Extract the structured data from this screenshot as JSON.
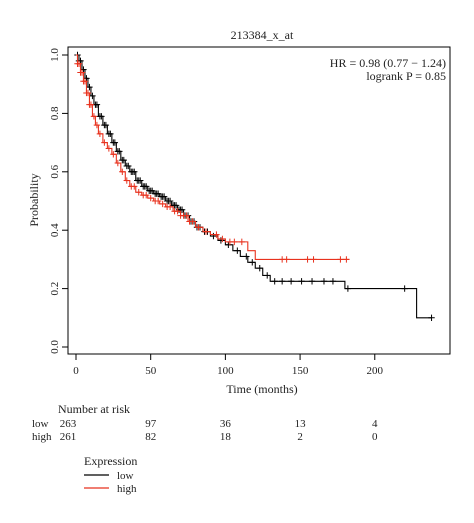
{
  "chart_data": {
    "type": "line",
    "title": "213384_x_at",
    "xlabel": "Time (months)",
    "ylabel": "Probability",
    "xlim": [
      0,
      245
    ],
    "ylim": [
      0,
      1
    ],
    "xticks": [
      0,
      50,
      100,
      150,
      200
    ],
    "yticks": [
      0.0,
      0.2,
      0.4,
      0.6,
      0.8,
      1.0
    ],
    "grid": false,
    "annotations": {
      "hr": "HR = 0.98 (0.77 − 1.24)",
      "logrank": "logrank P = 0.85"
    },
    "series": [
      {
        "name": "low",
        "color": "#000000",
        "x": [
          0,
          2,
          4,
          6,
          8,
          10,
          12,
          15,
          18,
          21,
          24,
          27,
          30,
          33,
          36,
          40,
          44,
          48,
          52,
          56,
          60,
          64,
          68,
          72,
          76,
          80,
          85,
          90,
          95,
          100,
          105,
          110,
          115,
          120,
          125,
          130,
          135,
          140,
          150,
          160,
          170,
          180,
          185,
          200,
          210,
          228,
          238
        ],
        "y": [
          1.0,
          0.98,
          0.95,
          0.92,
          0.89,
          0.86,
          0.83,
          0.79,
          0.76,
          0.73,
          0.7,
          0.67,
          0.64,
          0.62,
          0.6,
          0.57,
          0.55,
          0.535,
          0.525,
          0.515,
          0.5,
          0.485,
          0.47,
          0.45,
          0.43,
          0.41,
          0.395,
          0.38,
          0.365,
          0.35,
          0.33,
          0.31,
          0.29,
          0.27,
          0.245,
          0.225,
          0.225,
          0.225,
          0.225,
          0.225,
          0.225,
          0.2,
          0.2,
          0.2,
          0.2,
          0.1,
          0.1
        ],
        "censor_x": [
          1,
          2,
          3,
          5,
          7,
          9,
          11,
          13,
          14,
          16,
          17,
          19,
          20,
          22,
          23,
          25,
          26,
          28,
          29,
          31,
          32,
          34,
          35,
          37,
          38,
          39,
          41,
          42,
          43,
          45,
          46,
          47,
          49,
          50,
          51,
          53,
          54,
          55,
          57,
          58,
          59,
          61,
          62,
          63,
          65,
          66,
          67,
          69,
          70,
          71,
          73,
          75,
          77,
          79,
          81,
          83,
          86,
          88,
          92,
          97,
          102,
          108,
          114,
          118,
          123,
          128,
          133,
          138,
          144,
          151,
          158,
          166,
          172,
          182,
          220,
          238
        ]
      },
      {
        "name": "high",
        "color": "#e8321e",
        "x": [
          0,
          1,
          3,
          5,
          7,
          9,
          11,
          13,
          15,
          18,
          21,
          24,
          27,
          30,
          33,
          36,
          40,
          44,
          48,
          52,
          56,
          60,
          65,
          70,
          75,
          80,
          85,
          90,
          95,
          100,
          105,
          110,
          115,
          120,
          130,
          140,
          150,
          160,
          170,
          183
        ],
        "y": [
          1.0,
          0.97,
          0.94,
          0.91,
          0.87,
          0.83,
          0.79,
          0.76,
          0.73,
          0.7,
          0.68,
          0.66,
          0.63,
          0.6,
          0.57,
          0.55,
          0.53,
          0.52,
          0.51,
          0.5,
          0.49,
          0.48,
          0.465,
          0.45,
          0.43,
          0.41,
          0.395,
          0.385,
          0.37,
          0.36,
          0.36,
          0.36,
          0.33,
          0.3,
          0.3,
          0.3,
          0.3,
          0.3,
          0.3,
          0.3
        ],
        "censor_x": [
          1,
          2,
          3,
          4,
          5,
          6,
          7,
          8,
          9,
          10,
          12,
          14,
          16,
          19,
          22,
          25,
          28,
          31,
          34,
          37,
          39,
          42,
          45,
          47,
          50,
          53,
          55,
          58,
          61,
          63,
          66,
          68,
          70,
          72,
          74,
          76,
          78,
          82,
          87,
          94,
          98,
          103,
          106,
          111,
          138,
          141,
          155,
          159,
          177,
          181
        ]
      }
    ],
    "risk_table": {
      "title": "Number at risk",
      "time_points": [
        0,
        50,
        100,
        150,
        200
      ],
      "rows": [
        {
          "label": "low",
          "color": "#000000",
          "values": [
            "263",
            "97",
            "36",
            "13",
            "4"
          ]
        },
        {
          "label": "high",
          "color": "#e8321e",
          "values": [
            "261",
            "82",
            "18",
            "2",
            "0"
          ]
        }
      ]
    },
    "legend": {
      "title": "Expression",
      "placement": "bottom-left",
      "items": [
        {
          "label": "low",
          "color": "#000000"
        },
        {
          "label": "high",
          "color": "#e8321e"
        }
      ]
    }
  }
}
